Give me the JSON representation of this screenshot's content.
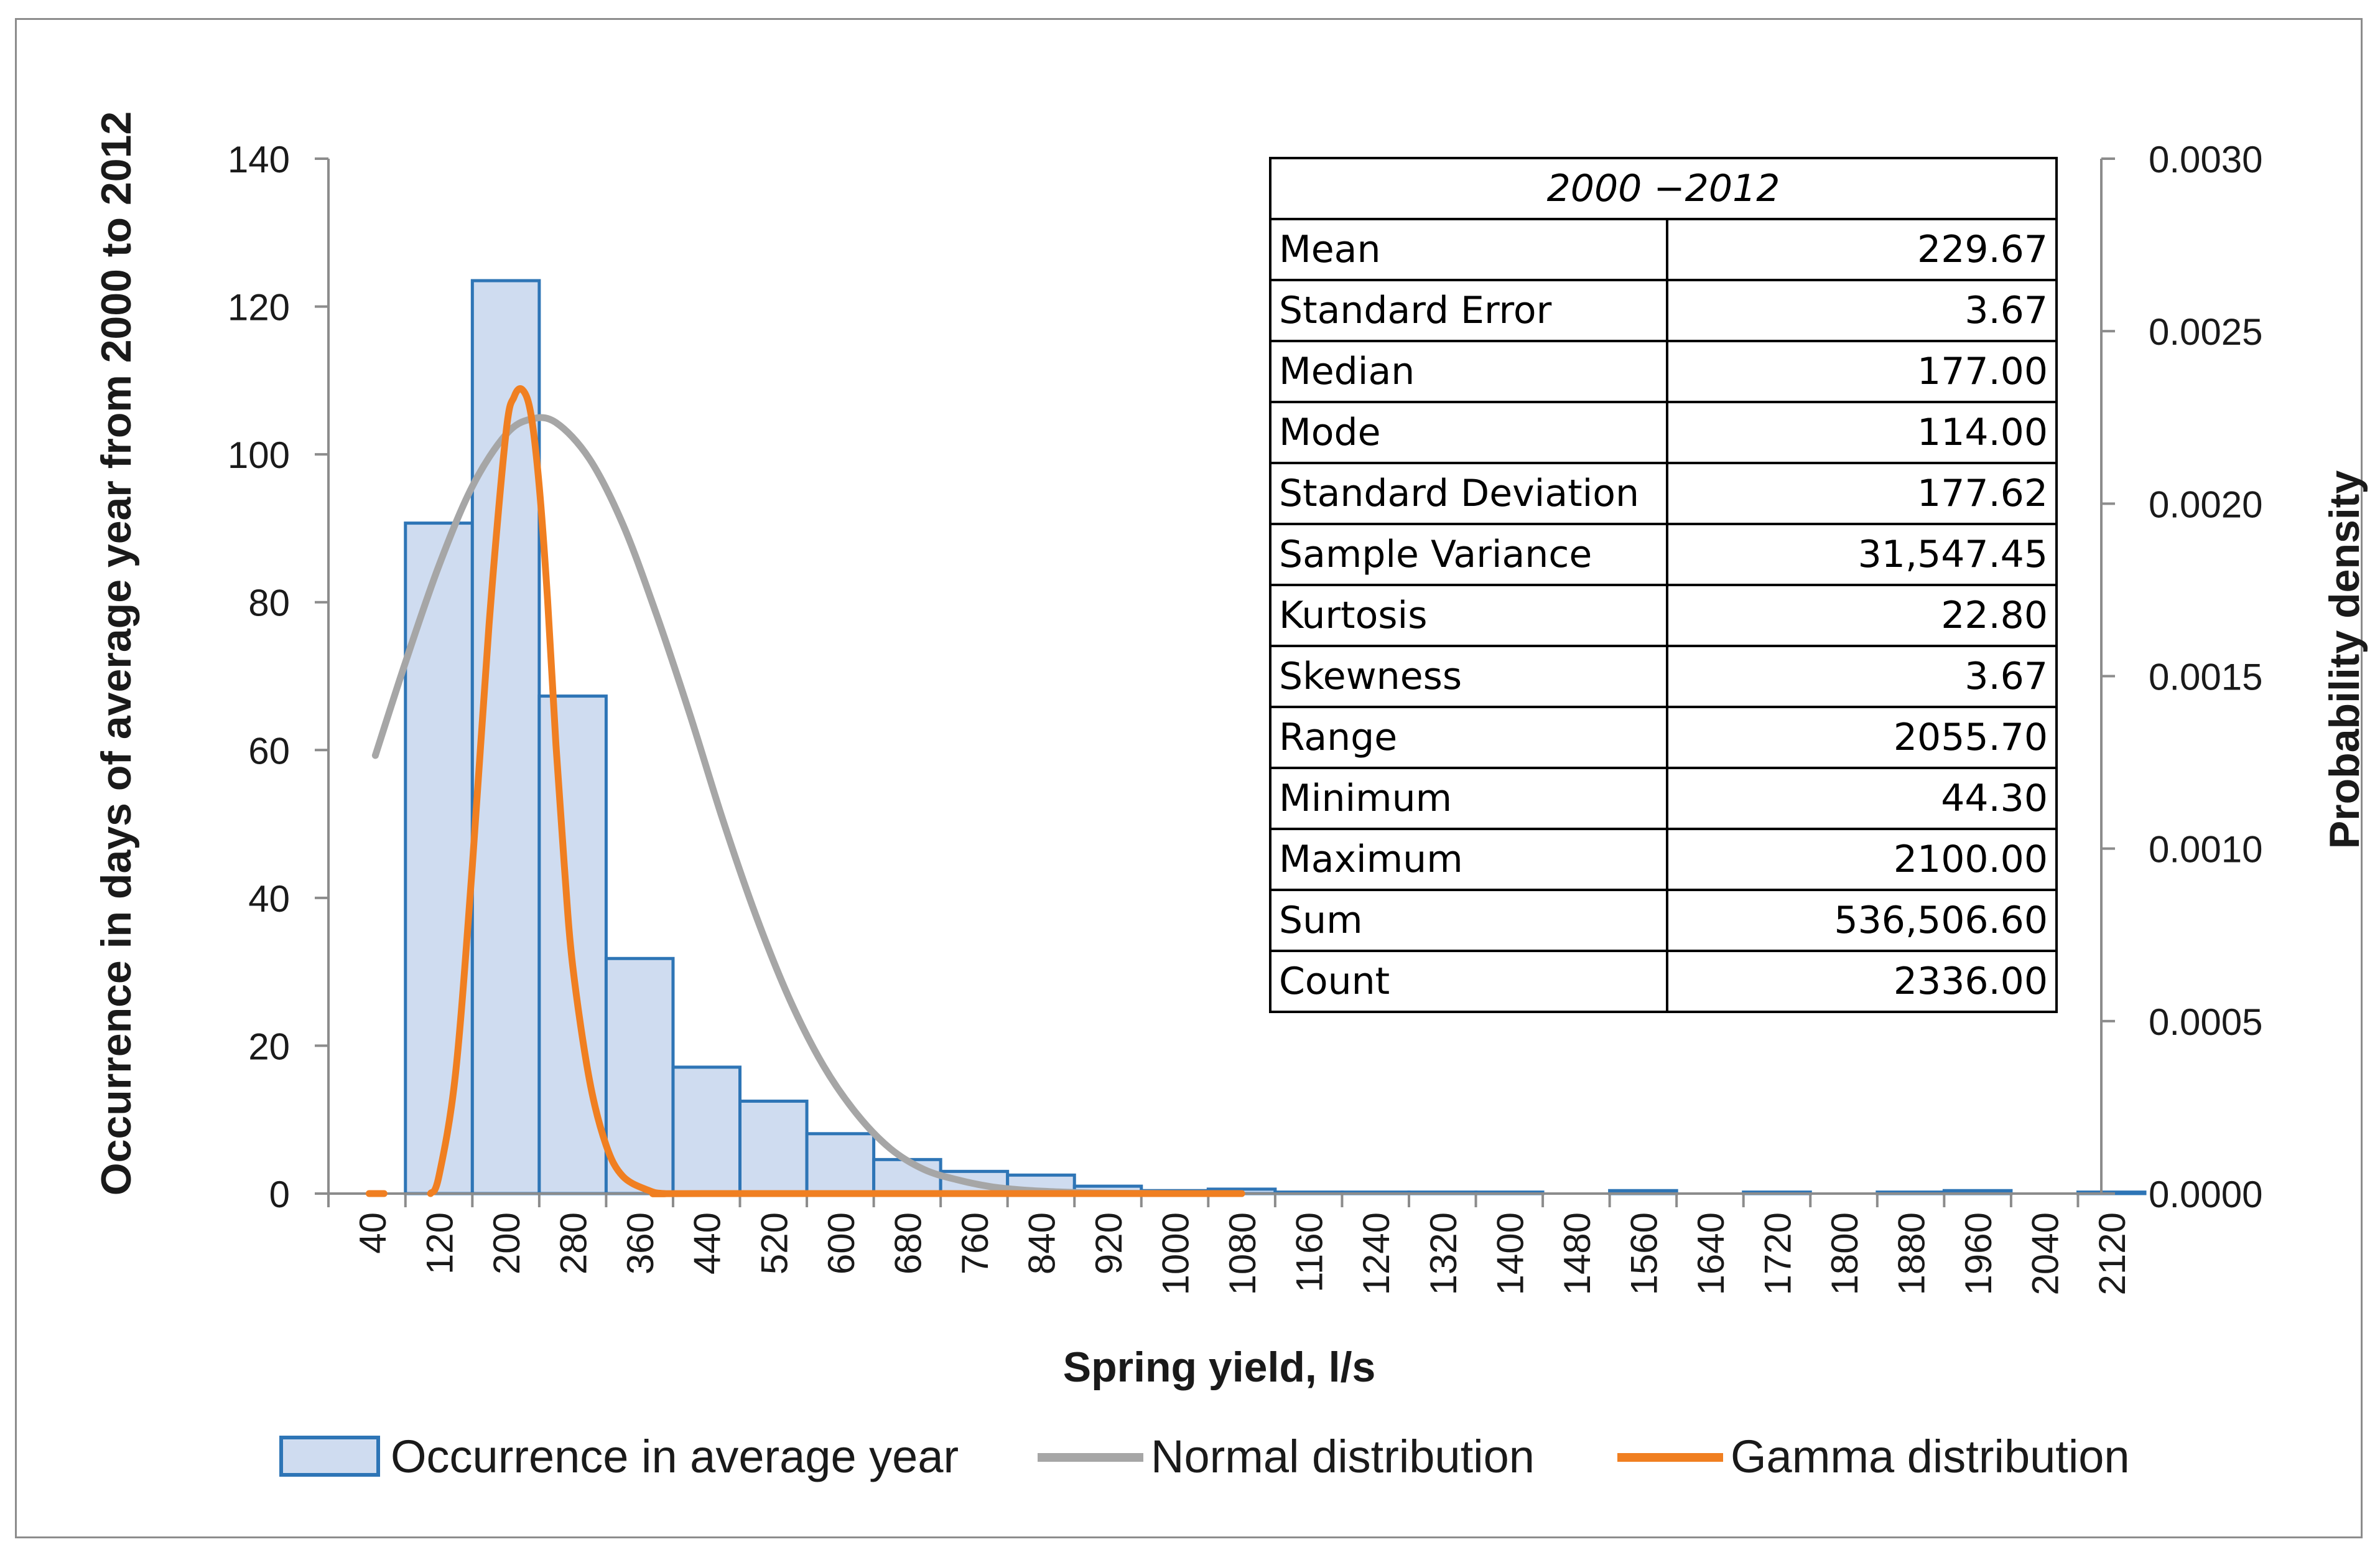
{
  "chart_data": {
    "type": "bar",
    "xlabel": "Spring yield, l/s",
    "ylabel": "Occurrence in days of average year from 2000 to 2012",
    "y2label": "Probability density",
    "ylim": [
      0,
      140
    ],
    "y_ticks": [
      "0",
      "20",
      "40",
      "60",
      "80",
      "100",
      "120",
      "140"
    ],
    "y2lim": [
      0,
      0.003
    ],
    "y2_ticks": [
      "0.0000",
      "0.0005",
      "0.0010",
      "0.0015",
      "0.0020",
      "0.0025",
      "0.0030"
    ],
    "categories": [
      "40",
      "120",
      "200",
      "280",
      "360",
      "440",
      "520",
      "600",
      "680",
      "760",
      "840",
      "920",
      "1000",
      "1080",
      "1160",
      "1240",
      "1320",
      "1400",
      "1480",
      "1560",
      "1640",
      "1720",
      "1800",
      "1880",
      "1960",
      "2040",
      "2120"
    ],
    "series": [
      {
        "name": "Occurrence in average year",
        "kind": "bar",
        "color": "#2e75b6",
        "fill": "#cfdcf0",
        "values": [
          0,
          90.7,
          123.5,
          67.3,
          31.8,
          17.1,
          12.5,
          8.1,
          4.6,
          3.0,
          2.5,
          1.0,
          0.4,
          0.6,
          0.2,
          0.2,
          0.2,
          0.2,
          0,
          0.4,
          0,
          0.2,
          0,
          0.2,
          0.4,
          0,
          0.2
        ]
      },
      {
        "name": "Normal distribution",
        "kind": "line",
        "axis": "secondary",
        "color": "#a6a6a6",
        "x": [
          44,
          80,
          120,
          160,
          200,
          230,
          260,
          300,
          340,
          380,
          420,
          460,
          500,
          540,
          580,
          620,
          660,
          700,
          740,
          780,
          820,
          860,
          900,
          940,
          1000,
          1080
        ],
        "y": [
          0.00127,
          0.00154,
          0.00182,
          0.00205,
          0.0022,
          0.002245,
          0.002235,
          0.00213,
          0.00194,
          0.00168,
          0.00139,
          0.00108,
          0.0008,
          0.00056,
          0.00037,
          0.00023,
          0.00013,
          7e-05,
          4e-05,
          2e-05,
          1e-05,
          5e-06,
          2e-06,
          1e-06,
          0,
          0
        ]
      },
      {
        "name": "Gamma distribution",
        "kind": "line",
        "axis": "secondary",
        "color": "#f07f21",
        "x": [
          44,
          50,
          110,
          120,
          140,
          160,
          180,
          200,
          210,
          220,
          230,
          240,
          250,
          260,
          270,
          280,
          300,
          320,
          340,
          370,
          390,
          440,
          1080
        ],
        "y": [
          0.0,
          null,
          0.0,
          5e-05,
          0.00035,
          0.00095,
          0.00165,
          0.0022,
          0.00231,
          0.00233,
          0.00226,
          0.00205,
          0.00172,
          0.0013,
          0.00095,
          0.00066,
          0.00033,
          0.00014,
          5e-05,
          1e-05,
          0.0,
          0.0,
          0.0
        ]
      }
    ],
    "legend_position": "bottom"
  },
  "stats_table": {
    "title": "2000 −2012",
    "rows": [
      {
        "label": "Mean",
        "value": "229.67"
      },
      {
        "label": "Standard Error",
        "value": "3.67"
      },
      {
        "label": "Median",
        "value": "177.00"
      },
      {
        "label": "Mode",
        "value": "114.00"
      },
      {
        "label": "Standard Deviation",
        "value": "177.62"
      },
      {
        "label": "Sample Variance",
        "value": "31,547.45"
      },
      {
        "label": "Kurtosis",
        "value": "22.80"
      },
      {
        "label": "Skewness",
        "value": "3.67"
      },
      {
        "label": "Range",
        "value": "2055.70"
      },
      {
        "label": "Minimum",
        "value": "44.30"
      },
      {
        "label": "Maximum",
        "value": "2100.00"
      },
      {
        "label": "Sum",
        "value": "536,506.60"
      },
      {
        "label": "Count",
        "value": "2336.00"
      }
    ]
  },
  "legend": {
    "bars_label": "Occurrence in average year",
    "normal_label": "Normal distribution",
    "gamma_label": "Gamma distribution"
  }
}
